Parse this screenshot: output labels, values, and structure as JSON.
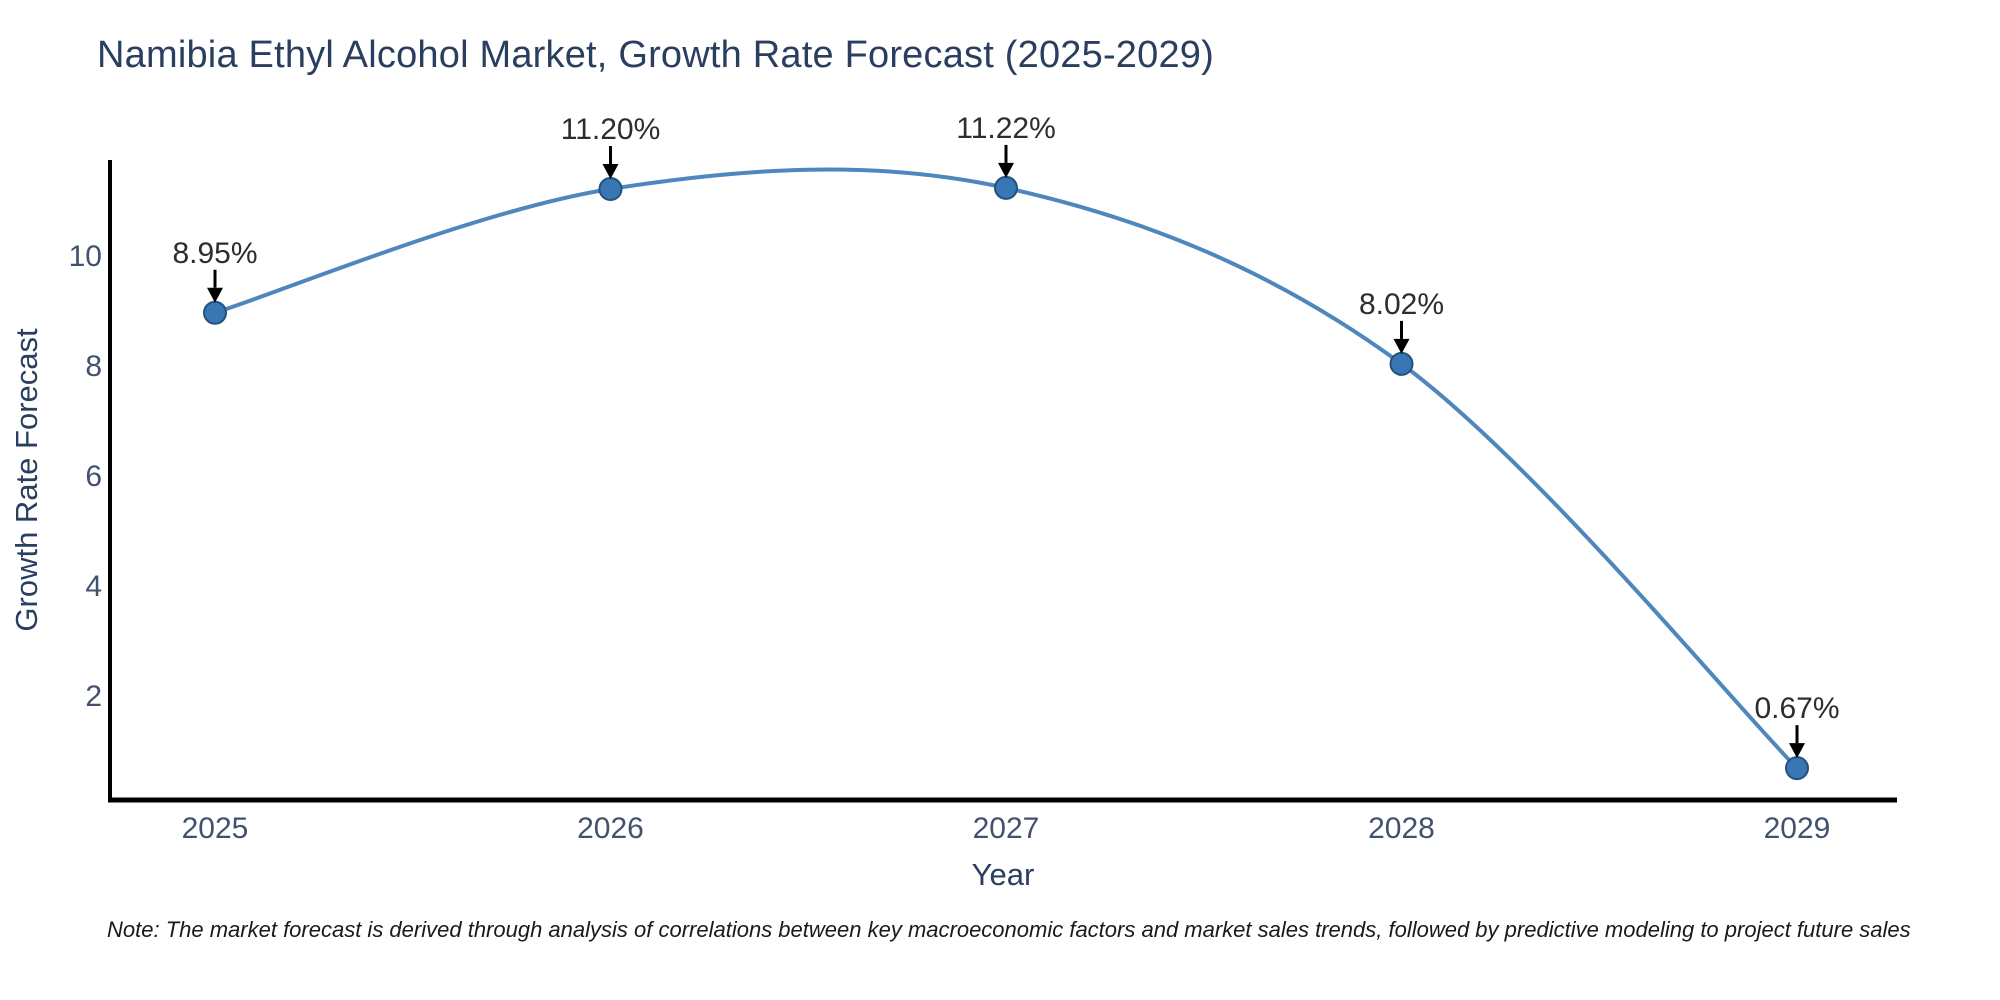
{
  "title": "Namibia Ethyl Alcohol Market, Growth Rate Forecast (2025-2029)",
  "note": "Note: The market forecast is derived through analysis of correlations between key macroeconomic factors and market sales trends, followed by predictive modeling to project future sales",
  "chart_data": {
    "type": "line",
    "title": "Namibia Ethyl Alcohol Market, Growth Rate Forecast (2025-2029)",
    "x": [
      "2025",
      "2026",
      "2027",
      "2028",
      "2029"
    ],
    "series": [
      {
        "name": "Growth Rate Forecast",
        "values": [
          8.95,
          11.2,
          11.22,
          8.02,
          0.67
        ]
      }
    ],
    "point_labels": [
      "8.95%",
      "11.20%",
      "11.22%",
      "8.02%",
      "0.67%"
    ],
    "xlabel": "Year",
    "ylabel": "Growth Rate Forecast",
    "yticks": [
      2,
      4,
      6,
      8,
      10
    ],
    "ylim": [
      0.09,
      11.73
    ],
    "grid": false,
    "legend": false,
    "line_smooth": true
  },
  "colors": {
    "line": "#4e87bc",
    "marker_fill": "#3876b4",
    "marker_edge": "#24527e",
    "arrow": "#000000",
    "axis": "#000000",
    "heading_text": "#2a3f5f",
    "tick_text": "#42526e",
    "annotation_text": "#2d2d2d",
    "background": "#ffffff"
  }
}
